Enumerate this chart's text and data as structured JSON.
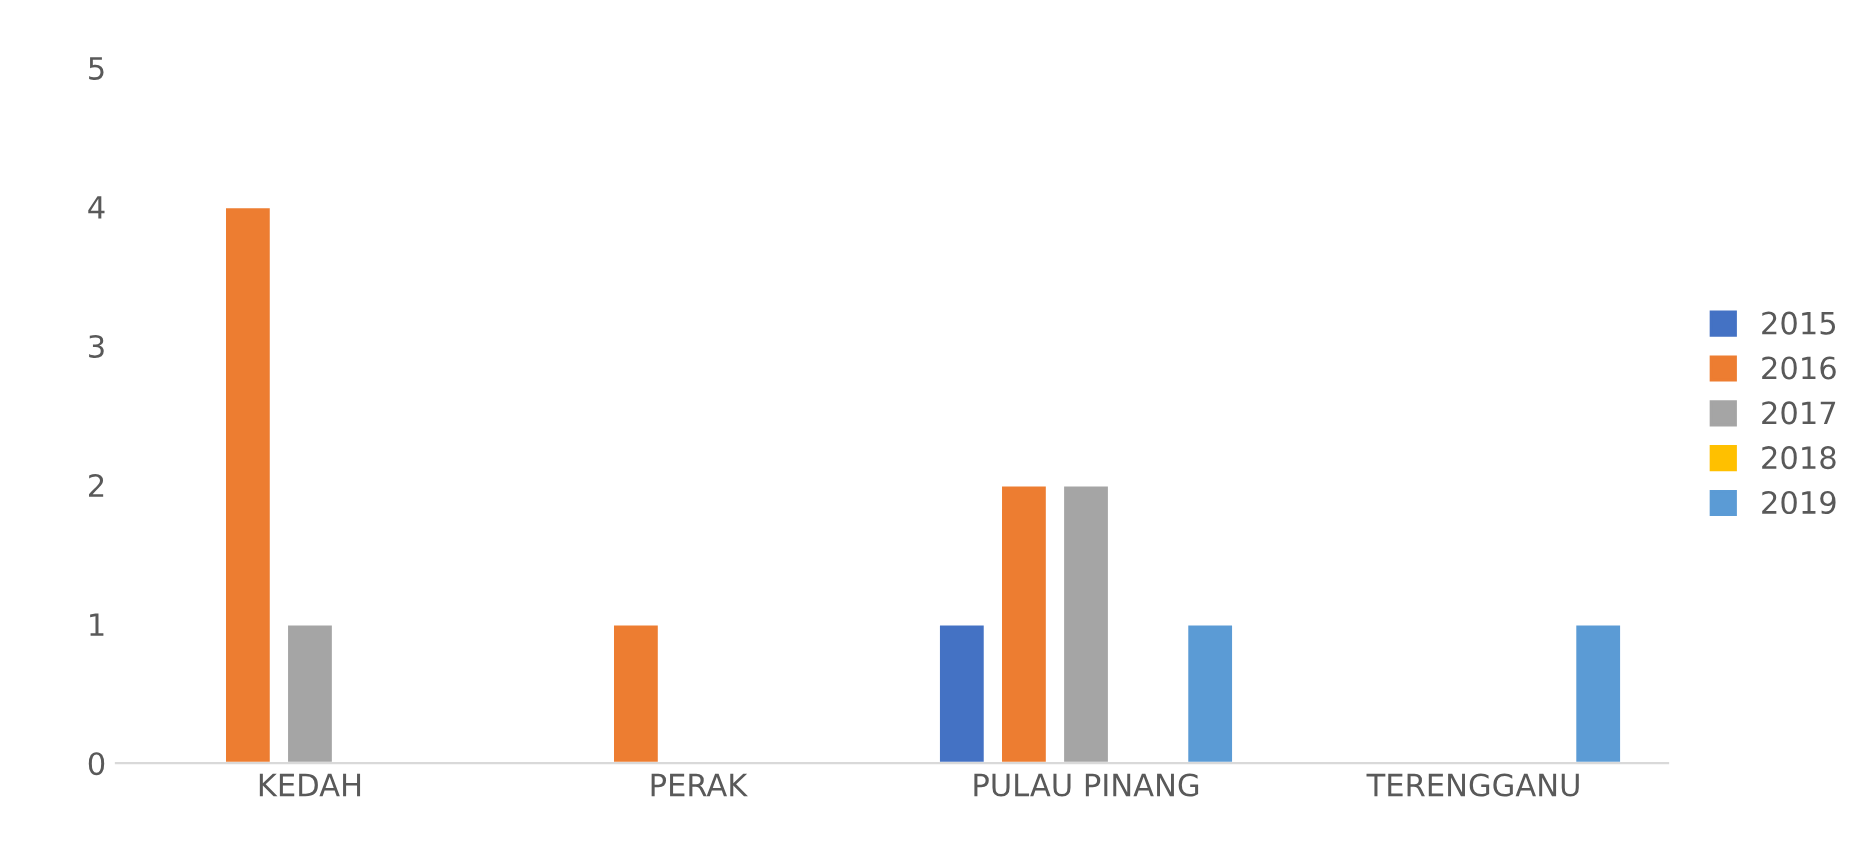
{
  "chart_data": {
    "type": "bar",
    "categories": [
      "KEDAH",
      "PERAK",
      "PULAU PINANG",
      "TERENGGANU"
    ],
    "series": [
      {
        "name": "2015",
        "color": "#4472c4",
        "values": [
          0,
          0,
          1,
          0
        ]
      },
      {
        "name": "2016",
        "color": "#ed7d31",
        "values": [
          4,
          1,
          2,
          0
        ]
      },
      {
        "name": "2017",
        "color": "#a5a5a5",
        "values": [
          1,
          0,
          2,
          0
        ]
      },
      {
        "name": "2018",
        "color": "#ffc000",
        "values": [
          0,
          0,
          0,
          0
        ]
      },
      {
        "name": "2019",
        "color": "#5b9bd5",
        "values": [
          0,
          0,
          1,
          1
        ]
      }
    ],
    "ylim": [
      0,
      5
    ],
    "yticks": [
      0,
      1,
      2,
      3,
      4,
      5
    ],
    "grid": false,
    "legend": "right"
  }
}
